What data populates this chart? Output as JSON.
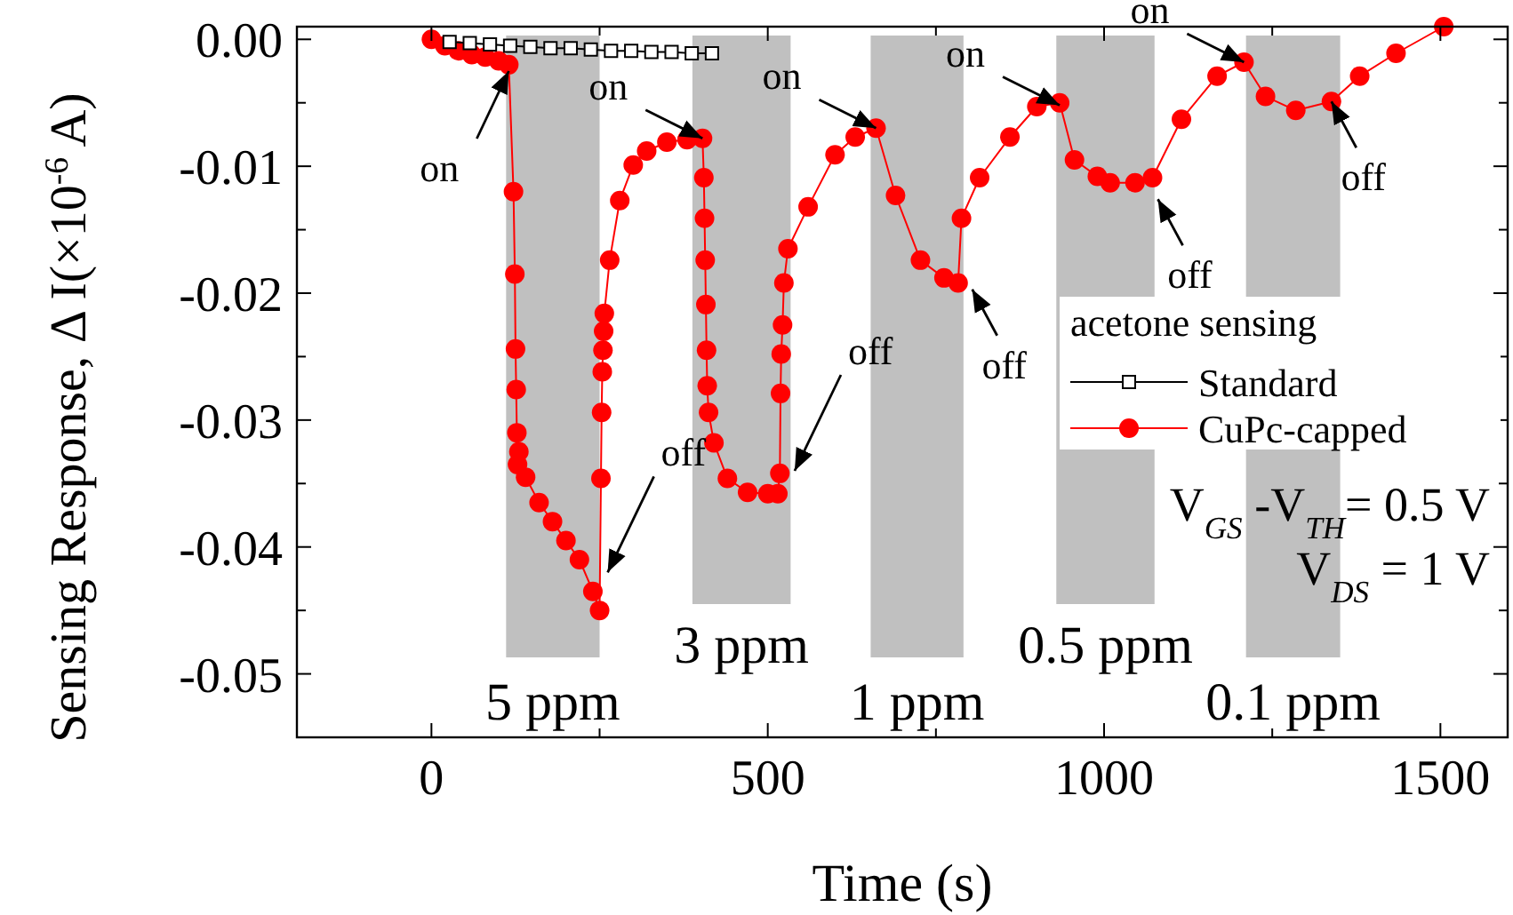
{
  "chart_data": {
    "type": "line",
    "xlabel": "Time (s)",
    "ylabel": "Sensing Response,  Δ I(×10$^{-6}$ A)",
    "legend_title": "acetone sensing",
    "legend": "right",
    "grid": false,
    "xlim": [
      -200,
      1600
    ],
    "xticks": [
      0,
      {
        "value": 250,
        "label": null
      },
      500,
      {
        "value": 750,
        "label": null
      },
      1000,
      {
        "value": 1250,
        "label": null
      },
      1500
    ],
    "ylim": [
      -0.055,
      0.001
    ],
    "yticks": [
      {
        "value": 0,
        "label": "0.00"
      },
      {
        "value": -0.005,
        "label": null
      },
      {
        "value": -0.01,
        "label": "-0.01"
      },
      {
        "value": -0.015,
        "label": null
      },
      {
        "value": -0.02,
        "label": "-0.02"
      },
      {
        "value": -0.025,
        "label": null
      },
      {
        "value": -0.03,
        "label": "-0.03"
      },
      {
        "value": -0.035,
        "label": null
      },
      {
        "value": -0.04,
        "label": "-0.04"
      },
      {
        "value": -0.045,
        "label": null
      },
      {
        "value": -0.05,
        "label": "-0.05"
      }
    ],
    "bands": [
      {
        "axis": "x",
        "from": 111,
        "to": 250,
        "label": "5 ppm",
        "color": "#c0c0c0"
      },
      {
        "axis": "x",
        "from": 388,
        "to": 534,
        "label": "3 ppm",
        "color": "#c0c0c0"
      },
      {
        "axis": "x",
        "from": 653,
        "to": 791,
        "label": "1 ppm",
        "color": "#c0c0c0"
      },
      {
        "axis": "x",
        "from": 929,
        "to": 1075,
        "label": "0.5 ppm",
        "color": "#c0c0c0"
      },
      {
        "axis": "x",
        "from": 1211,
        "to": 1351,
        "label": "0.1 ppm",
        "color": "#c0c0c0"
      }
    ],
    "series": [
      {
        "name": "Standard",
        "color": "#000000",
        "marker": "square",
        "x": [
          27,
          57,
          87,
          117,
          147,
          177,
          207,
          237,
          267,
          297,
          327,
          357,
          387,
          417
        ],
        "values": [
          -0.0002,
          -0.0003,
          -0.0004,
          -0.0005,
          -0.0006,
          -0.0007,
          -0.0007,
          -0.0008,
          -0.0009,
          -0.0009,
          -0.001,
          -0.001,
          -0.0011,
          -0.0011
        ]
      },
      {
        "name": "CuPc-capped",
        "color": "#ff0000",
        "marker": "circle",
        "x": [
          0,
          20,
          40,
          60,
          80,
          100,
          115,
          122,
          124,
          125,
          126,
          127,
          128,
          130,
          140,
          160,
          180,
          200,
          220,
          240,
          250,
          252,
          253,
          254,
          255,
          256,
          257,
          265,
          280,
          300,
          320,
          350,
          380,
          403,
          405,
          406,
          407,
          408,
          409,
          410,
          412,
          420,
          440,
          470,
          500,
          515,
          518,
          519,
          520,
          522,
          524,
          530,
          560,
          600,
          630,
          661,
          690,
          727,
          762,
          783,
          788,
          815,
          860,
          900,
          934,
          956,
          990,
          1009,
          1046,
          1072,
          1115,
          1168,
          1208,
          1240,
          1285,
          1338,
          1380,
          1434,
          1505
        ],
        "values": [
          0,
          -0.0005,
          -0.0009,
          -0.0012,
          -0.0014,
          -0.0017,
          -0.002,
          -0.012,
          -0.0185,
          -0.0244,
          -0.0276,
          -0.031,
          -0.0335,
          -0.0325,
          -0.0345,
          -0.0365,
          -0.038,
          -0.0395,
          -0.041,
          -0.0435,
          -0.045,
          -0.0346,
          -0.0294,
          -0.0262,
          -0.0245,
          -0.023,
          -0.0216,
          -0.0174,
          -0.0127,
          -0.0099,
          -0.0088,
          -0.0081,
          -0.0079,
          -0.0078,
          -0.0109,
          -0.0141,
          -0.0174,
          -0.0209,
          -0.0245,
          -0.0273,
          -0.0294,
          -0.0318,
          -0.0346,
          -0.0357,
          -0.0358,
          -0.0358,
          -0.0342,
          -0.0279,
          -0.0248,
          -0.0225,
          -0.0192,
          -0.0165,
          -0.0132,
          -0.0091,
          -0.0077,
          -0.007,
          -0.0123,
          -0.0174,
          -0.0188,
          -0.0192,
          -0.0141,
          -0.0109,
          -0.0077,
          -0.0053,
          -0.005,
          -0.0095,
          -0.0108,
          -0.0113,
          -0.0113,
          -0.0109,
          -0.0063,
          -0.0029,
          -0.0018,
          -0.0045,
          -0.0056,
          -0.0049,
          -0.0029,
          -0.0011,
          0.001
        ]
      }
    ],
    "annotations": [
      {
        "text": "on",
        "x": 115,
        "y": -0.0025
      },
      {
        "text": "off",
        "x": 262,
        "y": -0.042
      },
      {
        "text": "on",
        "x": 403,
        "y": -0.0078
      },
      {
        "text": "off",
        "x": 540,
        "y": -0.034
      },
      {
        "text": "on",
        "x": 661,
        "y": -0.007
      },
      {
        "text": "off",
        "x": 804,
        "y": -0.0197
      },
      {
        "text": "on",
        "x": 934,
        "y": -0.0052
      },
      {
        "text": "off",
        "x": 1080,
        "y": -0.0126
      },
      {
        "text": "on",
        "x": 1208,
        "y": -0.0018
      },
      {
        "text": "off",
        "x": 1338,
        "y": -0.0049
      },
      "V$_{GS}$ -V$_{TH}$= 0.5 V",
      "V$_{DS}$ = 1 V"
    ]
  }
}
